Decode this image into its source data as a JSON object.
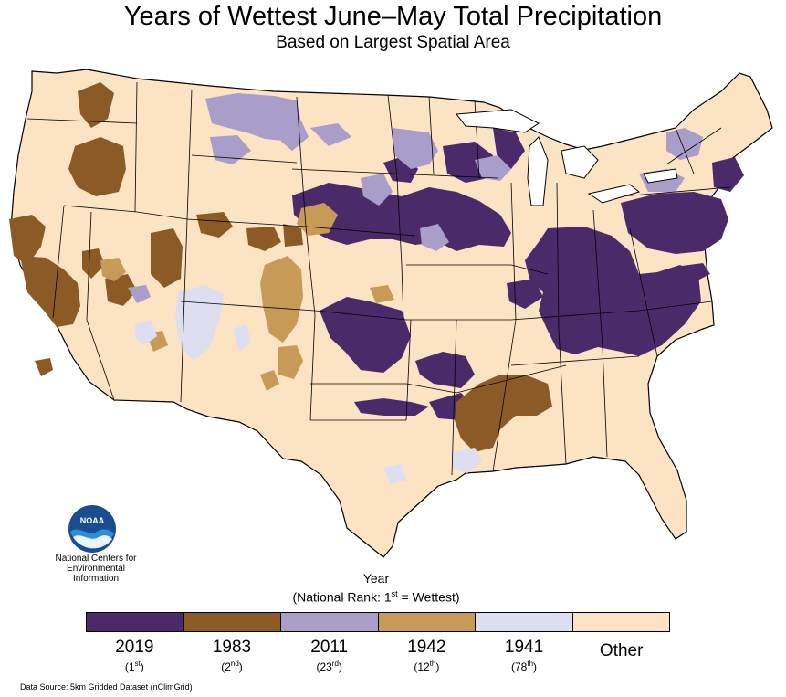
{
  "title": "Years of Wettest June–May Total Precipitation",
  "subtitle": "Based on Largest Spatial Area",
  "org": {
    "logo_text": "NOAA",
    "line1": "National Centers for",
    "line2": "Environmental",
    "line3": "Information"
  },
  "legend": {
    "title": "Year",
    "subtitle_prefix": "(National Rank: 1",
    "subtitle_sup": "st",
    "subtitle_suffix": " = Wettest)",
    "items": [
      {
        "year": "2019",
        "rank_num": "1",
        "rank_suffix": "st",
        "color": "#4b2a6a"
      },
      {
        "year": "1983",
        "rank_num": "2",
        "rank_suffix": "nd",
        "color": "#8c5a24"
      },
      {
        "year": "2011",
        "rank_num": "23",
        "rank_suffix": "rd",
        "color": "#a99dc9"
      },
      {
        "year": "1942",
        "rank_num": "12",
        "rank_suffix": "th",
        "color": "#c89a58"
      },
      {
        "year": "1941",
        "rank_num": "78",
        "rank_suffix": "th",
        "color": "#dddff0"
      },
      {
        "year": "Other",
        "color": "#fbe3c4"
      }
    ]
  },
  "colors": {
    "background": "#fbe3c4",
    "border": "#000000"
  },
  "source": "Data Source: 5km Gridded Dataset (nClimGrid)"
}
